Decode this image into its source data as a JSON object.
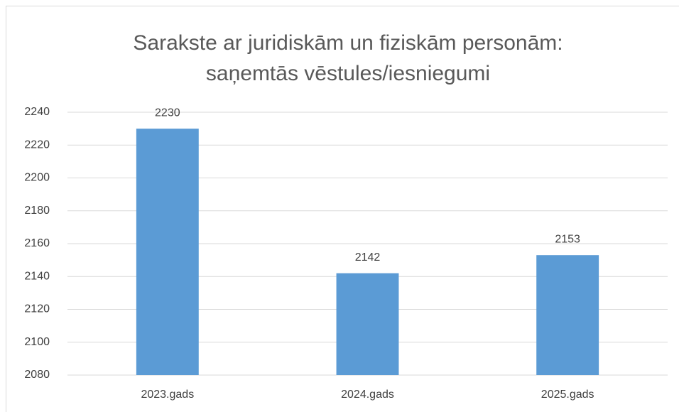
{
  "chart_data": {
    "type": "bar",
    "title": [
      "Sarakste ar juridiskām un fiziskām personām:",
      "saņemtās vēstules/iesniegumi"
    ],
    "categories": [
      "2023.gads",
      "2024.gads",
      "2025.gads"
    ],
    "values": [
      2230,
      2142,
      2153
    ],
    "color": "#5b9bd5",
    "ylim": [
      2080,
      2240
    ],
    "yticks": [
      2080,
      2100,
      2120,
      2140,
      2160,
      2180,
      2200,
      2220,
      2240
    ],
    "grid": true
  }
}
